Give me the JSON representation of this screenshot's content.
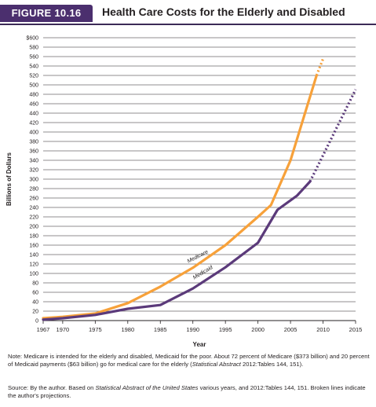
{
  "figure": {
    "label": "FIGURE 10.16",
    "title": "Health Care Costs for the Elderly and Disabled"
  },
  "chart_data": {
    "type": "line",
    "xlabel": "Year",
    "ylabel": "Billions of Dollars",
    "xlim": [
      1967,
      2015
    ],
    "ylim": [
      0,
      600
    ],
    "x_ticks": [
      "1967",
      "1970",
      "1975",
      "1980",
      "1985",
      "1990",
      "1995",
      "2000",
      "2005",
      "2010",
      "2015"
    ],
    "y_ticks": [
      "0",
      "20",
      "40",
      "60",
      "80",
      "100",
      "120",
      "140",
      "160",
      "180",
      "200",
      "220",
      "240",
      "260",
      "280",
      "300",
      "320",
      "340",
      "360",
      "380",
      "400",
      "420",
      "440",
      "460",
      "480",
      "500",
      "520",
      "540",
      "560",
      "580",
      "$600"
    ],
    "grid": true,
    "series": [
      {
        "name": "Medicare",
        "color": "#f7a13a",
        "points": [
          [
            1967,
            5
          ],
          [
            1970,
            8
          ],
          [
            1975,
            15
          ],
          [
            1980,
            37
          ],
          [
            1985,
            72
          ],
          [
            1990,
            112
          ],
          [
            1995,
            160
          ],
          [
            2000,
            220
          ],
          [
            2002,
            245
          ],
          [
            2005,
            340
          ],
          [
            2009,
            520
          ]
        ],
        "projected": [
          [
            2009,
            520
          ],
          [
            2010,
            555
          ]
        ]
      },
      {
        "name": "Medicaid",
        "color": "#5b3a7a",
        "points": [
          [
            1967,
            2
          ],
          [
            1970,
            5
          ],
          [
            1975,
            12
          ],
          [
            1980,
            25
          ],
          [
            1985,
            33
          ],
          [
            1990,
            68
          ],
          [
            1995,
            113
          ],
          [
            2000,
            165
          ],
          [
            2003,
            235
          ],
          [
            2006,
            265
          ],
          [
            2008,
            295
          ]
        ],
        "projected": [
          [
            2008,
            295
          ],
          [
            2015,
            490
          ]
        ]
      }
    ]
  },
  "notes": {
    "note_pre": "Note: Medicare is intended for the elderly and disabled, Medicaid for the poor. About 72 percent of Medicare ($373 billion) and 20 percent of Medicaid payments ($63 billion) go for medical care for the elderly (",
    "note_italic": "Statistical Abstract",
    "note_post": " 2012:Tables 144, 151).",
    "source_pre": "Source: By the author. Based on ",
    "source_italic": "Statistical Abstract of the United States",
    "source_post": " various years, and 2012:Tables 144, 151. Broken lines indicate the author's projections."
  }
}
